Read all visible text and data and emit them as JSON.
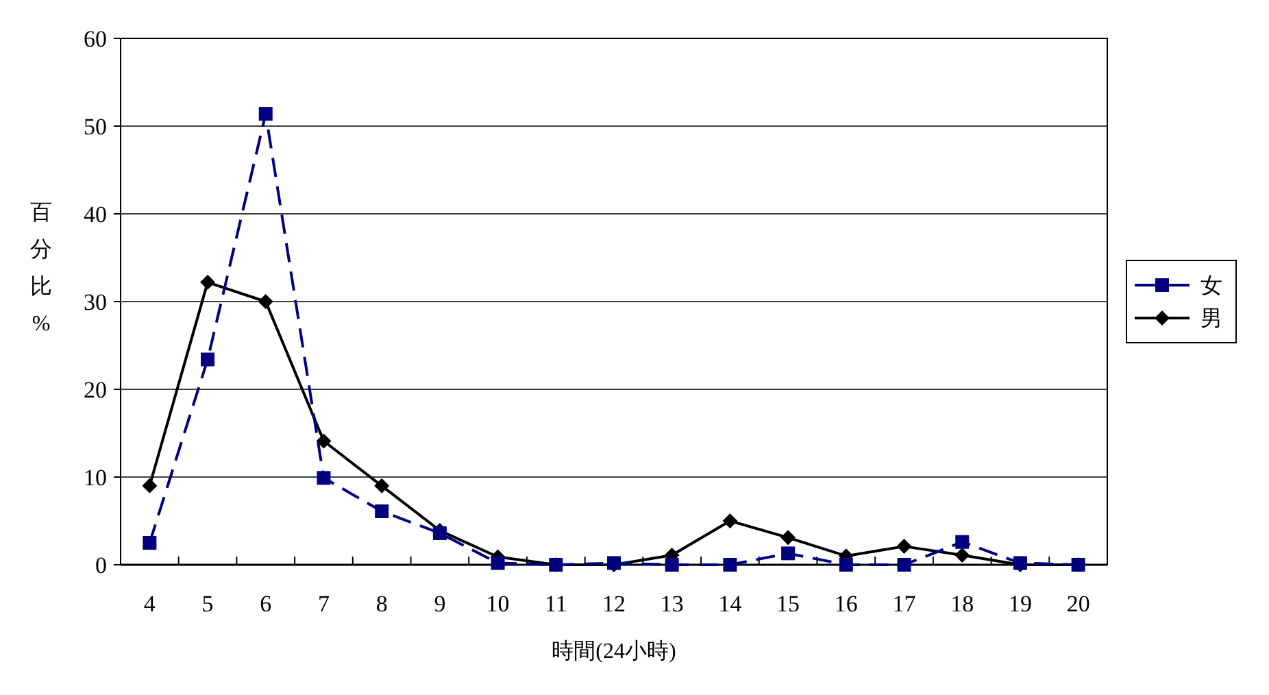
{
  "chart_data": {
    "type": "line",
    "xlabel": "時間(24小時)",
    "ylabel": "百分比%",
    "categories": [
      "4",
      "5",
      "6",
      "7",
      "8",
      "9",
      "10",
      "11",
      "12",
      "13",
      "14",
      "15",
      "16",
      "17",
      "18",
      "19",
      "20"
    ],
    "series": [
      {
        "name": "女",
        "color": "#000080",
        "marker": "square",
        "line_style": "dashed",
        "values": [
          2.5,
          23.4,
          51.4,
          9.9,
          6.1,
          3.6,
          0.2,
          0,
          0.2,
          0,
          0,
          1.3,
          0,
          0,
          2.6,
          0.2,
          0
        ]
      },
      {
        "name": "男",
        "color": "#000000",
        "marker": "diamond",
        "line_style": "solid",
        "values": [
          9,
          32.2,
          30,
          14.1,
          9,
          3.9,
          0.9,
          0,
          0,
          1.1,
          5,
          3.1,
          1,
          2.1,
          1.1,
          0,
          0
        ]
      }
    ],
    "ylim": [
      0,
      60
    ],
    "yticks": [
      0,
      10,
      20,
      30,
      40,
      50,
      60
    ],
    "grid": "y",
    "legend": "right"
  }
}
